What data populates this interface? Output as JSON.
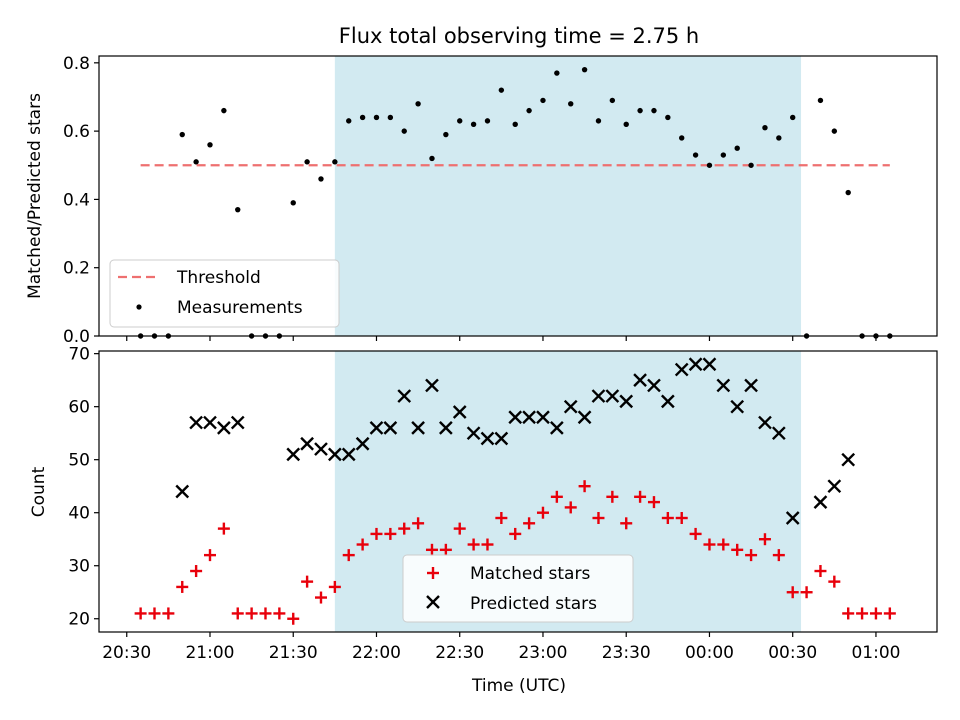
{
  "chart_data": {
    "title": "Flux total observing time = 2.75 h",
    "xlabel": "Time (UTC)",
    "x_start": "20:30",
    "x_tick_labels": [
      "20:30",
      "21:00",
      "21:30",
      "22:00",
      "22:30",
      "23:00",
      "23:30",
      "00:00",
      "00:30",
      "01:00"
    ],
    "x_tick_minutes": [
      0,
      30,
      60,
      90,
      120,
      150,
      180,
      210,
      240,
      270
    ],
    "xlim_minutes": [
      -10,
      292
    ],
    "observing_window_minutes": [
      75,
      243
    ],
    "times": [
      5,
      10,
      15,
      20,
      25,
      30,
      35,
      40,
      45,
      50,
      55,
      60,
      65,
      70,
      75,
      80,
      85,
      90,
      95,
      100,
      105,
      110,
      115,
      120,
      125,
      130,
      135,
      140,
      145,
      150,
      155,
      160,
      165,
      170,
      175,
      180,
      185,
      190,
      195,
      200,
      205,
      210,
      215,
      220,
      225,
      230,
      235,
      240,
      245,
      250,
      255,
      260,
      265,
      270,
      275
    ],
    "panels": [
      {
        "type": "scatter",
        "ylabel": "Matched/Predicted stars",
        "ylim": [
          0,
          0.82
        ],
        "yticks": [
          0.0,
          0.2,
          0.4,
          0.6,
          0.8
        ],
        "ytick_labels": [
          "0.0",
          "0.2",
          "0.4",
          "0.6",
          "0.8"
        ],
        "threshold": {
          "name": "Threshold",
          "value": 0.5,
          "x_range": [
            5,
            275
          ],
          "color": "#ee7070"
        },
        "series": [
          {
            "name": "Measurements",
            "color": "#000000",
            "values": [
              0,
              0,
              0,
              0.59,
              0.51,
              0.56,
              0.66,
              0.37,
              0,
              0,
              0,
              0.39,
              0.51,
              0.46,
              0.51,
              0.63,
              0.64,
              0.64,
              0.64,
              0.6,
              0.68,
              0.52,
              0.59,
              0.63,
              0.62,
              0.63,
              0.72,
              0.62,
              0.66,
              0.69,
              0.77,
              0.68,
              0.78,
              0.63,
              0.69,
              0.62,
              0.66,
              0.66,
              0.64,
              0.58,
              0.53,
              0.5,
              0.53,
              0.55,
              0.5,
              0.61,
              0.58,
              0.64,
              0,
              0.69,
              0.6,
              0.42,
              0,
              0,
              0
            ]
          }
        ],
        "legend": {
          "position": "lower-left",
          "entries": [
            "Threshold",
            "Measurements"
          ]
        }
      },
      {
        "type": "scatter",
        "ylabel": "Count",
        "ylim": [
          17.5,
          70.5
        ],
        "yticks": [
          20,
          30,
          40,
          50,
          60,
          70
        ],
        "ytick_labels": [
          "20",
          "30",
          "40",
          "50",
          "60",
          "70"
        ],
        "series": [
          {
            "name": "Matched stars",
            "marker": "plus",
            "color": "#e8000b",
            "values": [
              21,
              21,
              21,
              26,
              29,
              32,
              37,
              21,
              21,
              21,
              21,
              20,
              27,
              24,
              26,
              32,
              34,
              36,
              36,
              37,
              38,
              33,
              33,
              37,
              34,
              34,
              39,
              36,
              38,
              40,
              43,
              41,
              45,
              39,
              43,
              38,
              43,
              42,
              39,
              39,
              36,
              34,
              34,
              33,
              32,
              35,
              32,
              25,
              25,
              29,
              27,
              21,
              21,
              21,
              21
            ]
          },
          {
            "name": "Predicted stars",
            "marker": "x",
            "color": "#000000",
            "values": [
              null,
              null,
              null,
              44,
              57,
              57,
              56,
              57,
              null,
              null,
              null,
              51,
              53,
              52,
              51,
              51,
              53,
              56,
              56,
              62,
              56,
              64,
              56,
              59,
              55,
              54,
              54,
              58,
              58,
              58,
              56,
              60,
              58,
              62,
              62,
              61,
              65,
              64,
              61,
              67,
              68,
              68,
              64,
              60,
              64,
              57,
              55,
              39,
              null,
              42,
              45,
              50,
              null,
              null,
              null
            ]
          }
        ],
        "legend": {
          "position": "lower-center",
          "entries": [
            "Matched stars",
            "Predicted stars"
          ]
        }
      }
    ]
  }
}
